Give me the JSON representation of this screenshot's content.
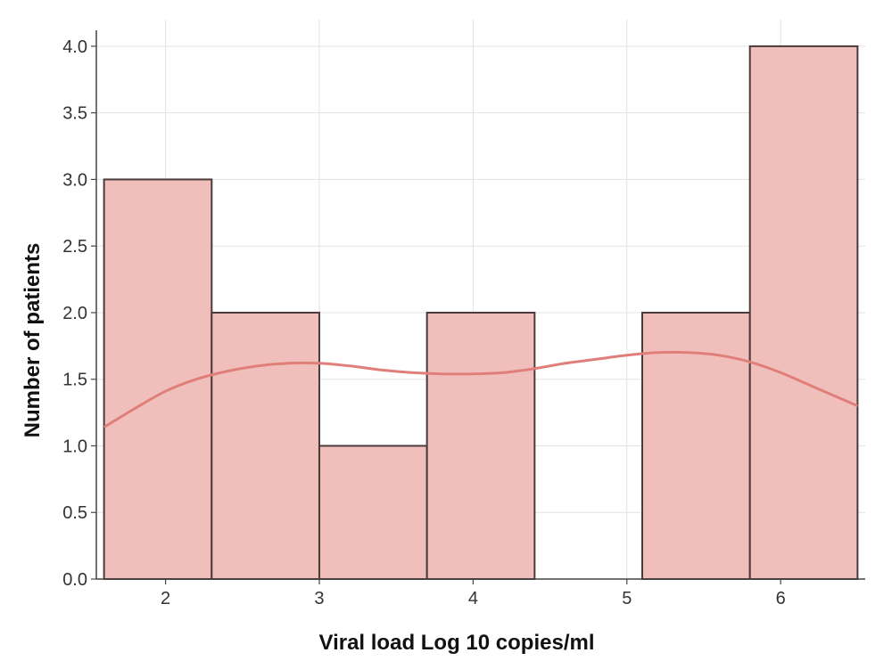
{
  "chart_data": {
    "type": "bar",
    "subtype": "histogram with kde",
    "xlabel": "Viral load Log 10 copies/ml",
    "ylabel": "Number of patients",
    "xlim": [
      1.55,
      6.55
    ],
    "ylim": [
      0,
      4.2
    ],
    "grid": true,
    "x_ticks": [
      2,
      3,
      4,
      5,
      6
    ],
    "y_ticks": [
      0.0,
      0.5,
      1.0,
      1.5,
      2.0,
      2.5,
      3.0,
      3.5,
      4.0
    ],
    "bin_edges": [
      1.6,
      2.3,
      3.0,
      3.7,
      4.4,
      5.1,
      5.8,
      6.5
    ],
    "values": [
      3,
      2,
      1,
      2,
      0,
      2,
      4
    ],
    "kde": {
      "x": [
        1.6,
        1.8,
        2.0,
        2.2,
        2.4,
        2.6,
        2.8,
        3.0,
        3.2,
        3.4,
        3.6,
        3.8,
        4.0,
        4.2,
        4.4,
        4.6,
        4.8,
        5.0,
        5.2,
        5.4,
        5.6,
        5.8,
        6.0,
        6.2,
        6.5
      ],
      "y": [
        1.14,
        1.28,
        1.41,
        1.5,
        1.56,
        1.6,
        1.62,
        1.62,
        1.6,
        1.57,
        1.55,
        1.54,
        1.54,
        1.55,
        1.58,
        1.62,
        1.65,
        1.68,
        1.7,
        1.7,
        1.68,
        1.63,
        1.55,
        1.45,
        1.3
      ]
    },
    "colors": {
      "bar_fill": "#f1bfbb",
      "bar_edge": "#4a3a3a",
      "kde_line": "#e07f7a"
    }
  }
}
